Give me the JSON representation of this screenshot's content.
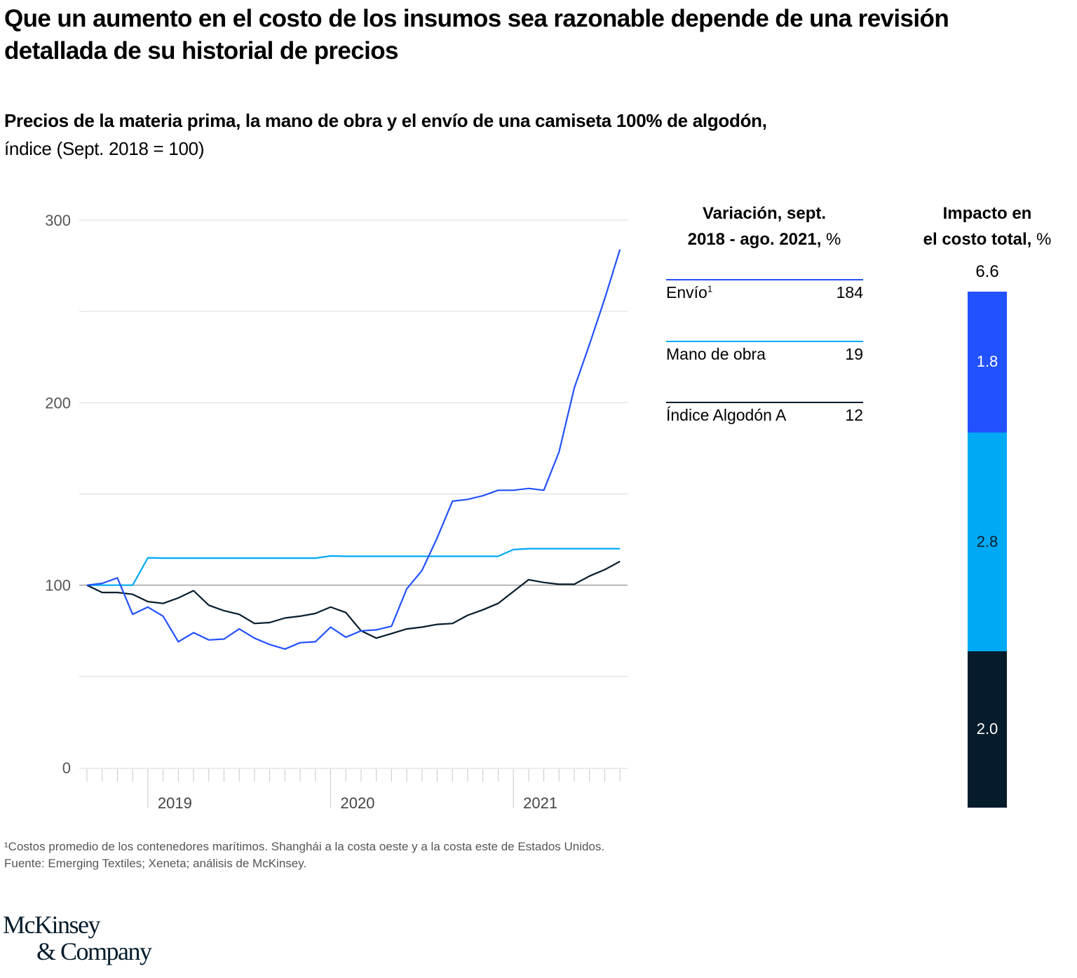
{
  "title": "Que un aumento en el costo de los insumos sea razonable depende de una revisión detallada de su historial de precios",
  "subtitle_bold": "Precios de la materia prima, la mano de obra y el envío de una camiseta 100% de algodón,",
  "subtitle_regular": "índice (Sept. 2018 = 100)",
  "colors": {
    "envio": "#2251ff",
    "mano_de_obra": "#00a9f4",
    "algodon": "#051c2c",
    "grid": "#d9d9d9",
    "baseline": "#a0a0a0"
  },
  "chart_data": [
    {
      "type": "line",
      "title": "Precios de la materia prima, la mano de obra y el envío de una camiseta 100% de algodón",
      "ylabel": "índice (Sept. 2018 = 100)",
      "xlabel": "",
      "ylim": [
        0,
        300
      ],
      "yticks": [
        "0",
        "100",
        "200",
        "300"
      ],
      "grid": true,
      "x_start": "2018-09",
      "x_end": "2021-08",
      "x_year_labels": [
        "2019",
        "2020",
        "2021"
      ],
      "series": [
        {
          "name": "Envío",
          "key": "envio",
          "values": [
            100,
            101,
            104,
            84,
            88,
            83,
            69,
            74,
            70,
            70.5,
            76,
            71,
            67.5,
            65,
            68.5,
            69,
            77,
            71.5,
            75,
            75.5,
            77.5,
            98,
            108,
            126,
            146,
            147,
            149,
            152,
            152,
            153,
            152,
            173,
            208,
            232,
            257,
            284
          ]
        },
        {
          "name": "Mano de obra",
          "key": "mano_de_obra",
          "values": [
            100,
            100,
            100,
            100,
            115,
            114.8,
            114.8,
            114.8,
            114.8,
            114.8,
            114.8,
            114.8,
            114.8,
            114.8,
            114.8,
            114.8,
            116,
            115.8,
            115.8,
            115.8,
            115.8,
            115.8,
            115.8,
            115.8,
            115.8,
            115.8,
            115.8,
            115.8,
            119.5,
            120,
            120,
            120,
            120,
            120,
            120,
            120
          ]
        },
        {
          "name": "Índice Algodón A",
          "key": "algodon",
          "values": [
            100,
            96,
            96,
            95,
            91,
            90,
            93,
            97,
            89,
            86,
            84,
            79,
            79.5,
            82,
            83,
            84.5,
            88,
            85,
            75,
            71,
            73.5,
            76,
            77,
            78.5,
            79,
            83.5,
            86.5,
            90,
            96.5,
            103,
            101.5,
            100.5,
            100.5,
            105,
            108.5,
            113
          ]
        }
      ]
    },
    {
      "type": "table",
      "title": "Variación, sept. 2018 - ago. 2021, %",
      "rows": [
        {
          "label": "Envío",
          "footnote": "1",
          "value": "184",
          "key": "envio"
        },
        {
          "label": "Mano de obra",
          "footnote": "",
          "value": "19",
          "key": "mano_de_obra"
        },
        {
          "label": "Índice Algodón A",
          "footnote": "",
          "value": "12",
          "key": "algodon"
        }
      ]
    },
    {
      "type": "bar",
      "title": "Impacto en el costo total, %",
      "total": "6.6",
      "stacked": true,
      "segments": [
        {
          "name": "Envío",
          "value": 1.8,
          "label": "1.8",
          "key": "envio"
        },
        {
          "name": "Mano de obra",
          "value": 2.8,
          "label": "2.8",
          "key": "mano_de_obra"
        },
        {
          "name": "Índice Algodón A",
          "value": 2.0,
          "label": "2.0",
          "key": "algodon"
        }
      ]
    }
  ],
  "variation_header": {
    "line1": "Variación, sept.",
    "line2_bold": "2018 - ago. 2021,",
    "line2_unit": " %"
  },
  "impact_header": {
    "line1": "Impacto en",
    "line2_bold": "el costo total,",
    "line2_unit": " %"
  },
  "footnote_1": "¹Costos promedio de los contenedores marítimos. Shanghái a la costa oeste y a la costa este de Estados Unidos.",
  "source": "Fuente: Emerging Textiles; Xeneta; análisis de McKinsey.",
  "logo": {
    "line1": "McKinsey",
    "line2": "& Company"
  }
}
